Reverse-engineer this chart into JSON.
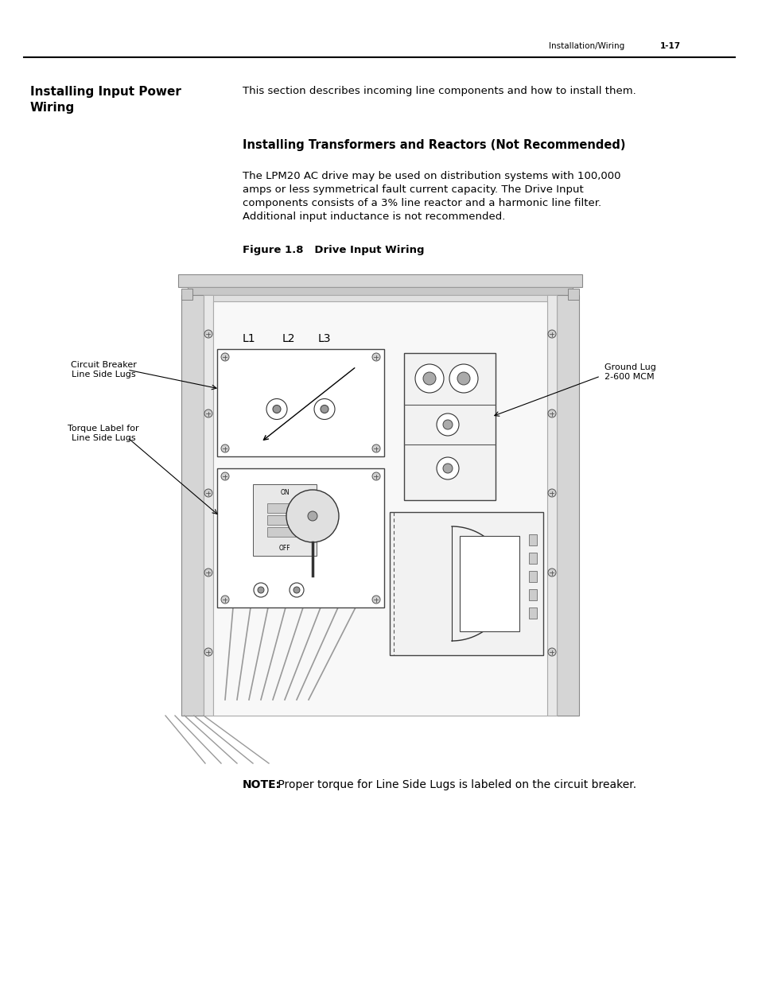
{
  "page_header_right": "Installation/Wiring",
  "page_number": "1-17",
  "section_title_line1": "Installing Input Power",
  "section_title_line2": "Wiring",
  "section_intro": "This section describes incoming line components and how to install them.",
  "subsection_title": "Installing Transformers and Reactors (Not Recommended)",
  "body_lines": [
    "The LPM20 AC drive may be used on distribution systems with 100,000",
    "amps or less symmetrical fault current capacity. The Drive Input",
    "components consists of a 3% line reactor and a harmonic line filter.",
    "Additional input inductance is not recommended."
  ],
  "figure_label": "Figure 1.8   Drive Input Wiring",
  "note_bold": "NOTE:",
  "note_rest": " Proper torque for Line Side Lugs is labeled on the circuit breaker.",
  "bg_color": "#ffffff",
  "text_color": "#000000",
  "label_circuit_breaker": "Circuit Breaker\nLine Side Lugs",
  "label_torque": "Torque Label for\nLine Side Lugs",
  "label_ground": "Ground Lug\n2-600 MCM",
  "label_L1": "L1",
  "label_L2": "L2",
  "label_L3": "L3"
}
